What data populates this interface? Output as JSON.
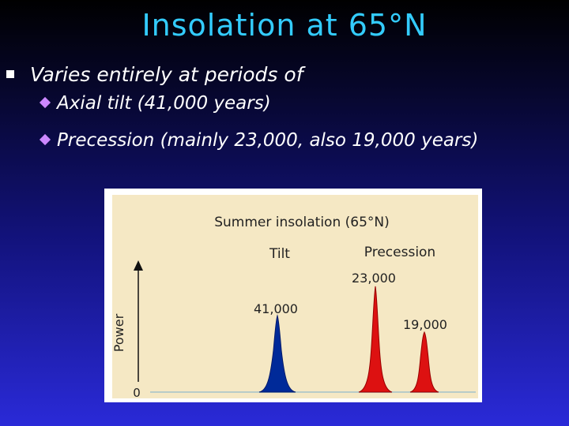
{
  "slide": {
    "title": "Insolation at 65°N",
    "bullet": "Varies entirely at periods of",
    "sub_bullets": [
      "Axial tilt (41,000 years)",
      "Precession (mainly 23,000, also 19,000 years)"
    ]
  },
  "figure": {
    "title": "Summer insolation (65°N)",
    "ylabel": "Power",
    "y_zero_label": "0",
    "group_labels": {
      "tilt": "Tilt",
      "precession": "Precession"
    },
    "peak_labels": [
      "41,000",
      "23,000",
      "19,000"
    ],
    "colors": {
      "tilt": "#002a99",
      "precession": "#dd1111",
      "panel": "#f5e8c4"
    }
  }
}
